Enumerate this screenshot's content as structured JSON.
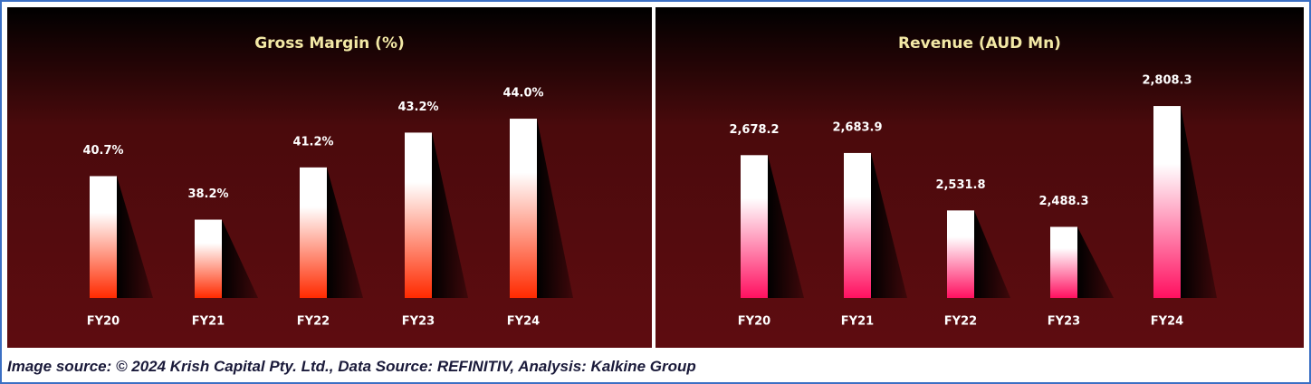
{
  "chart_data": [
    {
      "type": "bar",
      "title": "Gross Margin (%)",
      "categories": [
        "FY20",
        "FY21",
        "FY22",
        "FY23",
        "FY24"
      ],
      "values": [
        40.7,
        38.2,
        41.2,
        43.2,
        44.0
      ],
      "value_labels": [
        "40.7%",
        "38.2%",
        "41.2%",
        "43.2%",
        "44.0%"
      ],
      "color": "#ff2a00",
      "ylim": [
        33.7,
        46.5
      ],
      "grid": false
    },
    {
      "type": "bar",
      "title": "Revenue (AUD Mn)",
      "categories": [
        "FY20",
        "FY21",
        "FY22",
        "FY23",
        "FY24"
      ],
      "values": [
        2678.2,
        2683.9,
        2531.8,
        2488.3,
        2808.3
      ],
      "value_labels": [
        "2,678.2",
        "2,683.9",
        "2,531.8",
        "2,488.3",
        "2,808.3"
      ],
      "color": "#ff1060",
      "ylim": [
        2300,
        2890
      ],
      "grid": false
    }
  ],
  "caption": "Image source: © 2024 Krish Capital Pty. Ltd., Data Source: REFINITIV, Analysis: Kalkine Group"
}
